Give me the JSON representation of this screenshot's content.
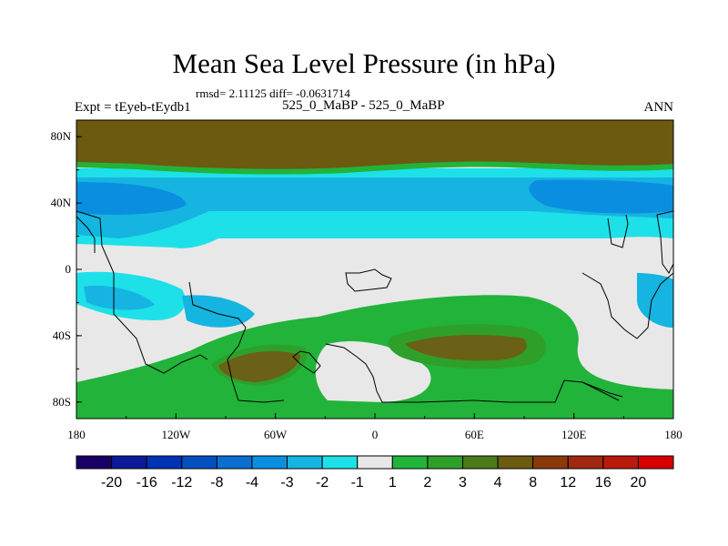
{
  "chart_data": {
    "type": "heatmap",
    "title": "Mean Sea Level Pressure (in hPa)",
    "stats_text": "rmsd= 2.11125 diff= -0.0631714",
    "left_label": "Expt = tEyeb-tEydb1",
    "center_label": "525_0_MaBP - 525_0_MaBP",
    "right_label": "ANN",
    "x_ticks": [
      "180",
      "120W",
      "60W",
      "0",
      "60E",
      "120E",
      "180"
    ],
    "y_ticks": [
      "80N",
      "40N",
      "0",
      "40S",
      "80S"
    ],
    "xlim": [
      -180,
      180
    ],
    "ylim": [
      -90,
      90
    ],
    "colorbar": {
      "labels": [
        "-20",
        "-16",
        "-12",
        "-8",
        "-4",
        "-3",
        "-2",
        "-1",
        "1",
        "2",
        "3",
        "4",
        "8",
        "12",
        "16",
        "20"
      ],
      "colors": [
        "#1a0066",
        "#0a1a99",
        "#0033b3",
        "#0050c0",
        "#0a6fd0",
        "#0a8fe0",
        "#16b4e0",
        "#1ee0e8",
        "#e8e8e8",
        "#22b33a",
        "#2ea02a",
        "#4a7a1a",
        "#6b5a10",
        "#8a3a0a",
        "#a02810",
        "#b81a0c",
        "#d80000"
      ]
    },
    "colors": {
      "brown": "#6b5a10",
      "dark_olive": "#6a6016",
      "green": "#22b33a",
      "light_green": "#2ea02a",
      "gray": "#e8e8e8",
      "cyan": "#1ee0e8",
      "sky": "#16b4e0",
      "blue": "#0a8fe0",
      "deep_blue": "#0a6fd0"
    }
  }
}
